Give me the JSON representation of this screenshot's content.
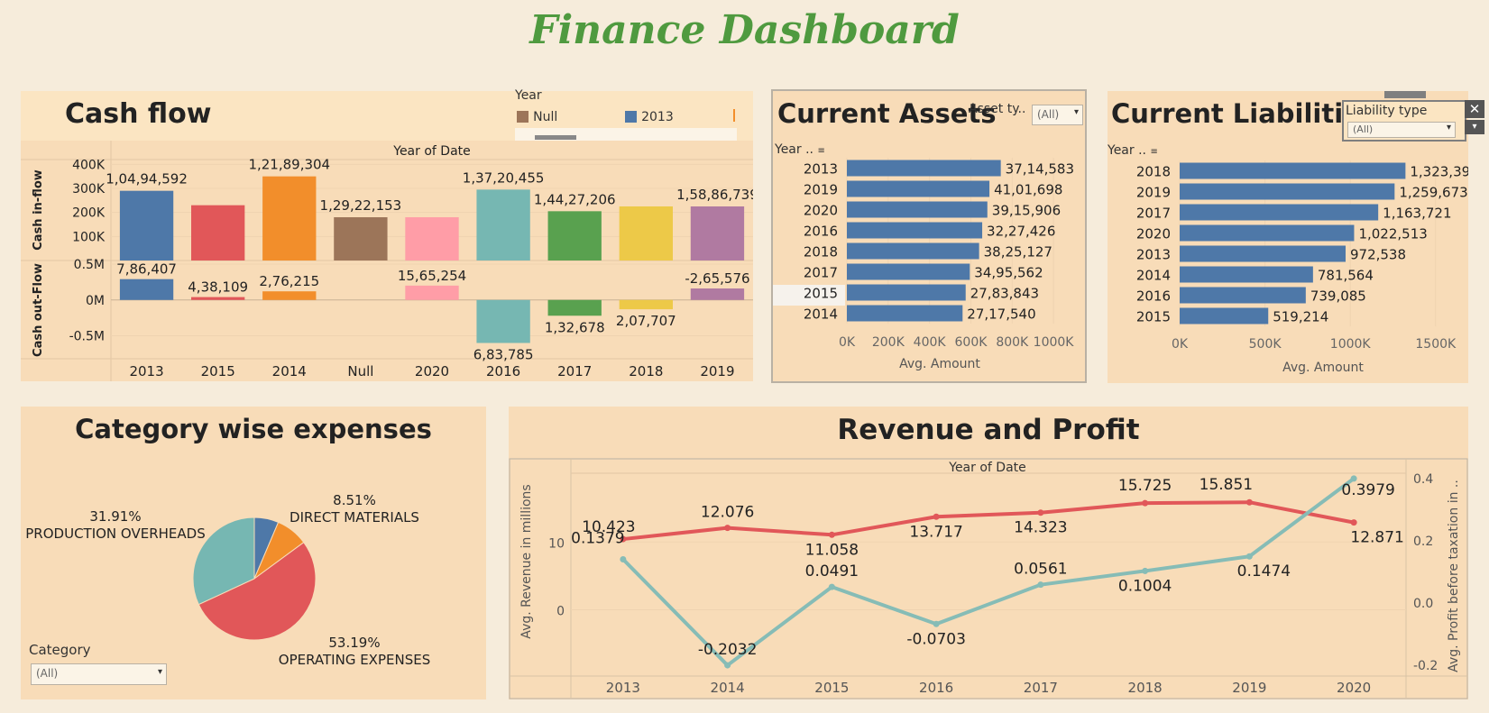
{
  "title": "Finance Dashboard",
  "cashflow": {
    "title": "Cash flow",
    "header": "Year of Date",
    "inflow_label": "Cash in-flow",
    "outflow_label": "Cash out-Flow",
    "legend": {
      "title": "Year",
      "items": [
        {
          "label": "Null",
          "color": "#9c7559"
        },
        {
          "label": "2013",
          "color": "#4e78a8"
        }
      ]
    }
  },
  "assets": {
    "title": "Current Assets",
    "filter_label": "Asset ty..",
    "filter_value": "(All)",
    "row_header": "Year ..",
    "axis_title": "Avg. Amount"
  },
  "liabilities": {
    "title": "Current Liabilities",
    "filter_label": "Liability type",
    "filter_value": "(All)",
    "row_header": "Year ..",
    "axis_title": "Avg. Amount"
  },
  "expenses": {
    "title": "Category wise expenses",
    "filter_label": "Category",
    "filter_value": "(All)"
  },
  "revenue": {
    "title": "Revenue and Profit",
    "header": "Year of Date"
  },
  "chart_data": [
    {
      "type": "bar",
      "title": "Cash flow",
      "categories": [
        "2013",
        "2015",
        "2014",
        "Null",
        "2020",
        "2016",
        "2017",
        "2018",
        "2019"
      ],
      "colors": [
        "#4e78a8",
        "#e15759",
        "#f28e2b",
        "#9c7559",
        "#ff9da7",
        "#76b7b2",
        "#59a14f",
        "#edc948",
        "#b07aa1"
      ],
      "series": [
        {
          "name": "Cash in-flow",
          "values": [
            290000,
            230000,
            350000,
            180000,
            180000,
            295000,
            205000,
            225000,
            225000
          ],
          "labels": [
            "1,04,94,592",
            "",
            "1,21,89,304",
            "1,29,22,153",
            "",
            "1,37,20,455",
            "1,44,27,206",
            "",
            "1,58,86,739"
          ],
          "ylim": [
            0,
            420000
          ],
          "ticks": [
            {
              "v": 100000,
              "t": "100K"
            },
            {
              "v": 200000,
              "t": "200K"
            },
            {
              "v": 300000,
              "t": "300K"
            },
            {
              "v": 400000,
              "t": "400K"
            }
          ]
        },
        {
          "name": "Cash out-Flow",
          "values": [
            0.29,
            0.04,
            0.12,
            0,
            0.2,
            -0.6,
            -0.22,
            -0.13,
            0.16
          ],
          "labels": [
            "7,86,407",
            "4,38,109",
            "2,76,215",
            "",
            "15,65,254",
            "6,83,785",
            "1,32,678",
            "2,07,707",
            "-2,65,576"
          ],
          "ylim": [
            -0.82,
            0.55
          ],
          "ticks": [
            {
              "v": 0.5,
              "t": "0.5M"
            },
            {
              "v": 0,
              "t": "0M"
            },
            {
              "v": -0.5,
              "t": "-0.5M"
            }
          ]
        }
      ]
    },
    {
      "type": "bar",
      "title": "Current Assets",
      "orientation": "horizontal",
      "categories": [
        "2013",
        "2019",
        "2020",
        "2016",
        "2018",
        "2017",
        "2015",
        "2014"
      ],
      "values": [
        745000,
        690000,
        680000,
        655000,
        640000,
        595000,
        575000,
        560000
      ],
      "labels": [
        "37,14,583",
        "41,01,698",
        "39,15,906",
        "32,27,426",
        "38,25,127",
        "34,95,562",
        "27,83,843",
        "27,17,540"
      ],
      "xlim": [
        0,
        1100000
      ],
      "ticks": [
        "0K",
        "200K",
        "400K",
        "600K",
        "800K",
        "1000K"
      ],
      "xlabel": "Avg. Amount"
    },
    {
      "type": "bar",
      "title": "Current Liabilities",
      "orientation": "horizontal",
      "categories": [
        "2018",
        "2019",
        "2017",
        "2020",
        "2013",
        "2014",
        "2016",
        "2015"
      ],
      "values": [
        1323399,
        1259673,
        1163721,
        1022513,
        972538,
        781564,
        739085,
        519214
      ],
      "labels": [
        "1,323,399",
        "1,259,673",
        "1,163,721",
        "1,022,513",
        "972,538",
        "781,564",
        "739,085",
        "519,214"
      ],
      "xlim": [
        0,
        1850000
      ],
      "ticks": [
        "0K",
        "500K",
        "1000K",
        "1500K"
      ],
      "xlabel": "Avg. Amount"
    },
    {
      "type": "pie",
      "title": "Category wise expenses",
      "slices": [
        {
          "label": "DIRECT MATERIALS",
          "value": 8.51,
          "pct": "8.51%"
        },
        {
          "label": "OPERATING EXPENSES",
          "value": 53.19,
          "pct": "53.19%"
        },
        {
          "label": "PRODUCTION OVERHEADS",
          "value": 31.91,
          "pct": "31.91%"
        }
      ],
      "colors": [
        "#4e78a8",
        "#f28e2b",
        "#e15759",
        "#76b7b2"
      ],
      "slice_values": [
        6.4,
        8.51,
        53.19,
        31.91
      ]
    },
    {
      "type": "line",
      "title": "Revenue and Profit",
      "x": [
        "2013",
        "2014",
        "2015",
        "2016",
        "2017",
        "2018",
        "2019",
        "2020"
      ],
      "series": [
        {
          "name": "Avg. Revenue in millions",
          "color": "#e15759",
          "values": [
            10.423,
            12.076,
            11.058,
            13.717,
            14.323,
            15.725,
            15.851,
            12.871
          ],
          "labels": [
            "10.423",
            "12.076",
            "11.058",
            "13.717",
            "14.323",
            "15.725",
            "15.851",
            "12.871"
          ],
          "ylim": [
            -9.5,
            20
          ],
          "ticks": [
            {
              "v": 10,
              "t": "10"
            },
            {
              "v": 0,
              "t": "0"
            }
          ]
        },
        {
          "name": "Avg. Profit before taxation in ..",
          "color": "#86bcb6",
          "values": [
            0.1379,
            -0.2032,
            0.0491,
            -0.0703,
            0.0561,
            0.1004,
            0.1474,
            0.3979
          ],
          "labels": [
            "0.1379",
            "-0.2032",
            "0.0491",
            "-0.0703",
            "0.0561",
            "0.1004",
            "0.1474",
            "0.3979"
          ],
          "ylim": [
            -0.232,
            0.412
          ],
          "ticks": [
            {
              "v": 0.4,
              "t": "0.4"
            },
            {
              "v": 0.2,
              "t": "0.2"
            },
            {
              "v": 0,
              "t": "0.0"
            },
            {
              "v": -0.2,
              "t": "-0.2"
            }
          ]
        }
      ]
    }
  ]
}
